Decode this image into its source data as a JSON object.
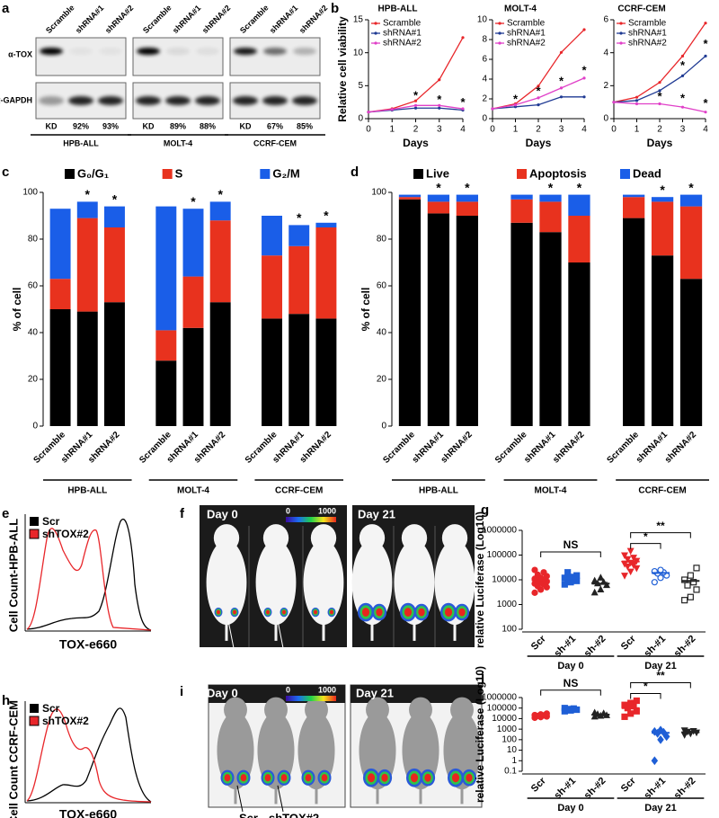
{
  "panel_a": {
    "label": "a",
    "lanes": [
      "Scramble",
      "shRNA#1",
      "shRNA#2",
      "Scramble",
      "shRNA#1",
      "shRNA#2",
      "Scramble",
      "shRNA#1",
      "shRNA#2"
    ],
    "rows": [
      "α-TOX",
      "α-GAPDH"
    ],
    "kd": [
      "KD",
      "92%",
      "93%",
      "KD",
      "89%",
      "88%",
      "KD",
      "67%",
      "85%"
    ],
    "cell_lines": [
      "HPB-ALL",
      "MOLT-4",
      "CCRF-CEM"
    ]
  },
  "panel_e": {
    "label": "e",
    "legend": [
      "Scr",
      "shTOX#2"
    ],
    "ylabel": "Cell Count-HPB-ALL",
    "xlabel": "TOX-e660"
  },
  "panel_f": {
    "label": "f",
    "days": [
      "Day 0",
      "Day 21"
    ],
    "scale": [
      "0",
      "1000"
    ],
    "arrows": [
      "Scr",
      "shTOX#2"
    ]
  },
  "panel_h": {
    "label": "h",
    "legend": [
      "Scr",
      "shTOX#2"
    ],
    "ylabel": "Cell Count CCRF-CEM",
    "xlabel": "TOX-e660"
  },
  "panel_i": {
    "label": "i",
    "days": [
      "Day 0",
      "Day 21"
    ],
    "scale": [
      "0",
      "1000"
    ],
    "arrows": [
      "Scr",
      "shTOX#2"
    ]
  },
  "chart_data": [
    {
      "type": "line",
      "panel_label": "b",
      "title": "HPB-ALL",
      "xlabel": "Days",
      "ylabel": "Relative cell viability",
      "x": [
        0,
        1,
        2,
        3,
        4
      ],
      "xlim": [
        0,
        4
      ],
      "xticks": [
        0,
        1,
        2,
        3,
        4
      ],
      "ylim": [
        0,
        15
      ],
      "yticks": [
        0,
        5,
        10,
        15
      ],
      "legend": "upper left",
      "series": [
        {
          "name": "Scramble",
          "color": "#e8262a",
          "values": [
            1,
            1.5,
            2.7,
            5.9,
            12.3
          ]
        },
        {
          "name": "shRNA#1",
          "color": "#1f3a93",
          "values": [
            1,
            1.3,
            1.6,
            1.6,
            1.3
          ]
        },
        {
          "name": "shRNA#2",
          "color": "#e040c8",
          "values": [
            1,
            1.4,
            2.0,
            2.0,
            1.5
          ]
        }
      ],
      "annotations": [
        {
          "text": "*",
          "x": 2,
          "y": 3.4
        },
        {
          "text": "*",
          "x": 3,
          "y": 2.8
        },
        {
          "text": "*",
          "x": 4,
          "y": 2.4
        }
      ]
    },
    {
      "type": "line",
      "title": "MOLT-4",
      "xlabel": "Days",
      "x": [
        0,
        1,
        2,
        3,
        4
      ],
      "xlim": [
        0,
        4
      ],
      "xticks": [
        0,
        1,
        2,
        3,
        4
      ],
      "ylim": [
        0,
        10
      ],
      "yticks": [
        0,
        2,
        4,
        6,
        8,
        10
      ],
      "legend": "upper left",
      "series": [
        {
          "name": "Scramble",
          "color": "#e8262a",
          "values": [
            1,
            1.5,
            3.3,
            6.7,
            9.0
          ]
        },
        {
          "name": "shRNA#1",
          "color": "#1f3a93",
          "values": [
            1,
            1.2,
            1.4,
            2.2,
            2.2
          ]
        },
        {
          "name": "shRNA#2",
          "color": "#e040c8",
          "values": [
            1,
            1.4,
            2.1,
            3.1,
            4.1
          ]
        }
      ],
      "annotations": [
        {
          "text": "*",
          "x": 1,
          "y": 1.9
        },
        {
          "text": "*",
          "x": 2,
          "y": 2.7
        },
        {
          "text": "*",
          "x": 3,
          "y": 3.7
        },
        {
          "text": "*",
          "x": 4,
          "y": 4.8
        }
      ]
    },
    {
      "type": "line",
      "title": "CCRF-CEM",
      "xlabel": "Days",
      "x": [
        0,
        1,
        2,
        3,
        4
      ],
      "xlim": [
        0,
        4
      ],
      "xticks": [
        0,
        1,
        2,
        3,
        4
      ],
      "ylim": [
        0,
        6
      ],
      "yticks": [
        0,
        2,
        4,
        6
      ],
      "legend": "upper left",
      "series": [
        {
          "name": "Scramble",
          "color": "#e8262a",
          "values": [
            1,
            1.3,
            2.2,
            3.8,
            5.8
          ]
        },
        {
          "name": "shRNA#1",
          "color": "#1f3a93",
          "values": [
            1,
            1.1,
            1.7,
            2.6,
            3.8
          ]
        },
        {
          "name": "shRNA#2",
          "color": "#e040c8",
          "values": [
            1,
            0.9,
            0.9,
            0.7,
            0.4
          ]
        }
      ],
      "annotations": [
        {
          "text": "*",
          "x": 3,
          "y": 3.2
        },
        {
          "text": "*",
          "x": 4,
          "y": 4.5
        },
        {
          "text": "*",
          "x": 2,
          "y": 1.3
        },
        {
          "text": "*",
          "x": 3,
          "y": 1.2
        },
        {
          "text": "*",
          "x": 4,
          "y": 0.9
        }
      ]
    },
    {
      "type": "stacked_bar",
      "panel_label": "c",
      "ylabel": "% of cell",
      "categories": [
        "Scramble",
        "shRNA#1",
        "shRNA#2",
        "Scramble",
        "shRNA#1",
        "shRNA#2",
        "Scramble",
        "shRNA#1",
        "shRNA#2"
      ],
      "groups": [
        "HPB-ALL",
        "MOLT-4",
        "CCRF-CEM"
      ],
      "ylim": [
        0,
        100
      ],
      "yticks": [
        0,
        20,
        40,
        60,
        80,
        100
      ],
      "legend": "top",
      "series": [
        {
          "name": "G₀/G₁",
          "color": "#000000",
          "values": [
            50,
            49,
            53,
            28,
            42,
            53,
            46,
            48,
            46
          ]
        },
        {
          "name": "S",
          "color": "#e8321e",
          "values": [
            13,
            40,
            32,
            13,
            22,
            35,
            27,
            29,
            39
          ]
        },
        {
          "name": "G₂/M",
          "color": "#1a5ee8",
          "values": [
            30,
            7,
            9,
            53,
            29,
            8,
            17,
            9,
            2
          ]
        }
      ],
      "annotations": [
        {
          "text": "*",
          "category": 1
        },
        {
          "text": "*",
          "category": 2
        },
        {
          "text": "*",
          "category": 4
        },
        {
          "text": "*",
          "category": 5
        },
        {
          "text": "*",
          "category": 7
        },
        {
          "text": "*",
          "category": 8
        }
      ]
    },
    {
      "type": "stacked_bar",
      "panel_label": "d",
      "ylabel": "% of cell",
      "categories": [
        "Scramble",
        "shRNA#1",
        "shRNA#2",
        "Scramble",
        "shRNA#1",
        "shRNA#2",
        "Scramble",
        "shRNA#1",
        "shRNA#2"
      ],
      "groups": [
        "HPB-ALL",
        "MOLT-4",
        "CCRF-CEM"
      ],
      "ylim": [
        0,
        100
      ],
      "yticks": [
        0,
        20,
        40,
        60,
        80,
        100
      ],
      "legend": "top",
      "series": [
        {
          "name": "Live",
          "color": "#000000",
          "values": [
            97,
            91,
            90,
            87,
            83,
            70,
            89,
            73,
            63
          ]
        },
        {
          "name": "Apoptosis",
          "color": "#e8321e",
          "values": [
            1,
            5,
            6,
            10,
            13,
            20,
            9,
            23,
            31
          ]
        },
        {
          "name": "Dead",
          "color": "#1a5ee8",
          "values": [
            1,
            3,
            3,
            2,
            3,
            9,
            1,
            2,
            5
          ]
        }
      ],
      "annotations": [
        {
          "text": "*",
          "category": 1
        },
        {
          "text": "*",
          "category": 2
        },
        {
          "text": "*",
          "category": 4
        },
        {
          "text": "*",
          "category": 5
        },
        {
          "text": "*",
          "category": 7
        },
        {
          "text": "*",
          "category": 8
        }
      ]
    },
    {
      "type": "dot",
      "panel_label": "g",
      "ylabel": "relative Luciferase (Log10)",
      "log": true,
      "ylim": [
        100,
        1000000
      ],
      "yticks": [
        100,
        1000,
        10000,
        100000,
        1000000
      ],
      "categories": [
        "Scr",
        "sh-#1",
        "sh-#2",
        "Scr",
        "sh-#1",
        "sh-#2"
      ],
      "groups": [
        "Day 0",
        "Day 21"
      ],
      "colors": [
        "#e8262a",
        "#1f5fd6",
        "#222222",
        "#e8262a",
        "#1f5fd6",
        "#222222"
      ],
      "markers": [
        "circle",
        "square",
        "triangle",
        "triangle-down",
        "open-circle",
        "open-square"
      ],
      "points": [
        [
          3000,
          4000,
          5000,
          5500,
          6500,
          7000,
          8000,
          8500,
          9000,
          10000,
          11000,
          12000,
          14000,
          16000,
          20000,
          25000
        ],
        [
          6500,
          8000,
          9000,
          10000,
          11000,
          12000,
          13000,
          15000,
          20000
        ],
        [
          3000,
          4000,
          6000,
          7000,
          8000,
          9000,
          12000
        ],
        [
          15000,
          22000,
          30000,
          35000,
          40000,
          45000,
          50000,
          60000,
          70000,
          80000,
          100000,
          150000
        ],
        [
          8000,
          12000,
          15000,
          18000,
          20000,
          22000,
          25000
        ],
        [
          1500,
          2000,
          4000,
          6000,
          8000,
          10000,
          15000,
          30000
        ]
      ],
      "means": [
        9500,
        11500,
        7000,
        55000,
        19000,
        9000
      ],
      "brackets": [
        {
          "text": "NS",
          "from": 0,
          "to": 2
        },
        {
          "text": "*",
          "from": 3,
          "to": 4
        },
        {
          "text": "**",
          "from": 3,
          "to": 5
        }
      ]
    },
    {
      "type": "dot",
      "panel_label": "j",
      "ylabel": "relative Luciferase (Log10)",
      "log": true,
      "ylim": [
        0.1,
        1000000
      ],
      "yticks": [
        0.1,
        1,
        10,
        100,
        1000,
        10000,
        100000,
        1000000
      ],
      "categories": [
        "Scr",
        "sh-#1",
        "sh-#2",
        "Scr",
        "sh-#1",
        "sh-#2"
      ],
      "groups": [
        "Day 0",
        "Day 21"
      ],
      "colors": [
        "#e8262a",
        "#1f5fd6",
        "#222222",
        "#e8262a",
        "#1f5fd6",
        "#222222"
      ],
      "markers": [
        "circle",
        "square",
        "triangle",
        "square",
        "diamond",
        "triangle-down"
      ],
      "points": [
        [
          12000,
          14000,
          16000,
          18000,
          20000,
          22000,
          25000,
          30000
        ],
        [
          50000,
          60000,
          70000,
          80000,
          90000,
          100000
        ],
        [
          15000,
          18000,
          20000,
          25000,
          30000,
          35000
        ],
        [
          15000,
          30000,
          50000,
          100000,
          150000,
          200000,
          300000,
          500000
        ],
        [
          1,
          100,
          200,
          400,
          500,
          600,
          800
        ],
        [
          300,
          400,
          500,
          600,
          700,
          800
        ]
      ],
      "means": [
        19000,
        75000,
        24000,
        100000,
        450,
        500
      ],
      "brackets": [
        {
          "text": "NS",
          "from": 0,
          "to": 2
        },
        {
          "text": "*",
          "from": 3,
          "to": 4
        },
        {
          "text": "**",
          "from": 3,
          "to": 5
        }
      ]
    }
  ]
}
